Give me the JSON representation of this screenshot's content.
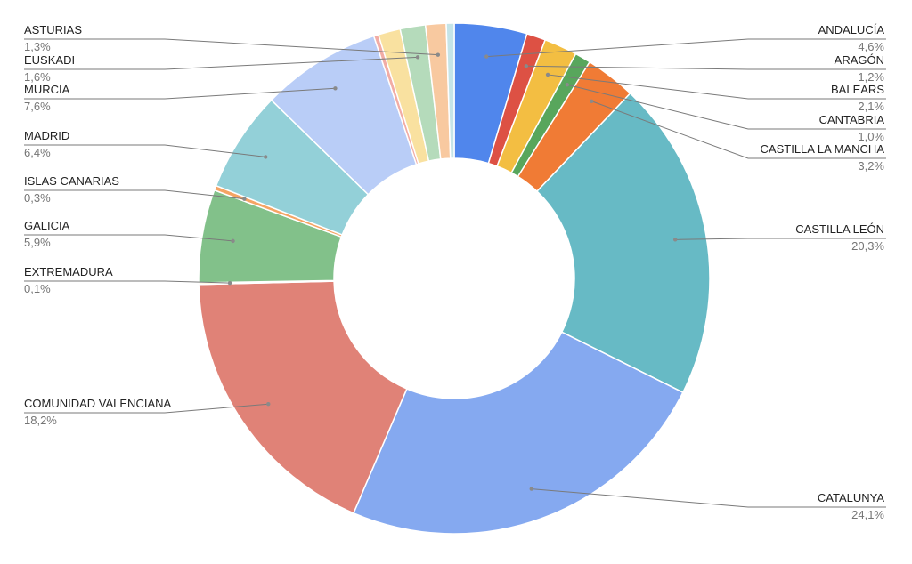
{
  "chart_data": {
    "type": "pie",
    "donut": true,
    "title": "",
    "legend": "none",
    "slices": [
      {
        "label": "ANDALUCÍA",
        "display": "4,6%",
        "value": 4.6,
        "color": "#5086ec"
      },
      {
        "label": "ARAGÓN",
        "display": "1,2%",
        "value": 1.2,
        "color": "#dd5144"
      },
      {
        "label": "BALEARS",
        "display": "2,1%",
        "value": 2.1,
        "color": "#f3be42"
      },
      {
        "label": "CANTABRIA",
        "display": "1,0%",
        "value": 1.0,
        "color": "#58a65c"
      },
      {
        "label": "CASTILLA LA MANCHA",
        "display": "3,2%",
        "value": 3.2,
        "color": "#f07b35"
      },
      {
        "label": "CASTILLA LEÓN",
        "display": "20,3%",
        "value": 20.3,
        "color": "#67bac5"
      },
      {
        "label": "CATALUNYA",
        "display": "24,1%",
        "value": 24.1,
        "color": "#85a9f0"
      },
      {
        "label": "COMUNIDAD VALENCIANA",
        "display": "18,2%",
        "value": 18.2,
        "color": "#e08277"
      },
      {
        "label": "EXTREMADURA",
        "display": "0,1%",
        "value": 0.1,
        "color": "#f5dc6b"
      },
      {
        "label": "GALICIA",
        "display": "5,9%",
        "value": 5.9,
        "color": "#82c18a"
      },
      {
        "label": "ISLAS CANARIAS",
        "display": "0,3%",
        "value": 0.3,
        "color": "#f5a464"
      },
      {
        "label": "MADRID",
        "display": "6,4%",
        "value": 6.4,
        "color": "#93d0d8"
      },
      {
        "label": "MURCIA",
        "display": "7,6%",
        "value": 7.6,
        "color": "#b9cdf7"
      },
      {
        "label": "",
        "display": "",
        "value": 0.3,
        "color": "#f2aca5"
      },
      {
        "label": "",
        "display": "",
        "value": 1.4,
        "color": "#f9e1a0"
      },
      {
        "label": "EUSKADI",
        "display": "1,6%",
        "value": 1.6,
        "color": "#b5dbbb"
      },
      {
        "label": "ASTURIAS",
        "display": "1,3%",
        "value": 1.3,
        "color": "#f8c9a0"
      },
      {
        "label": "",
        "display": "",
        "value": 0.5,
        "color": "#c5e4e8"
      }
    ]
  }
}
